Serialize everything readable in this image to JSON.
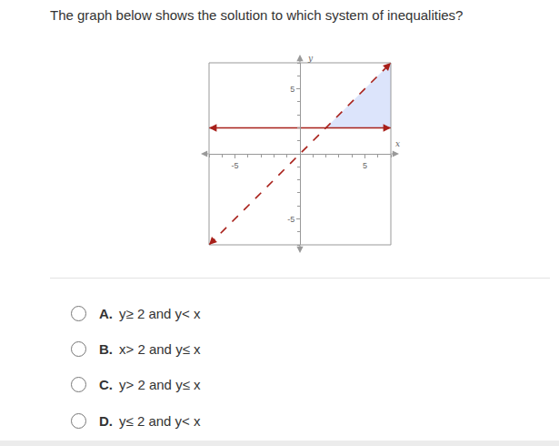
{
  "question": "The graph below shows the solution to which system of inequalities?",
  "chart_data": {
    "type": "inequality_graph",
    "xlabel": "x",
    "ylabel": "y",
    "xlim": [
      -7,
      7
    ],
    "ylim": [
      -7,
      7
    ],
    "xticks": [
      -5,
      5
    ],
    "yticks": [
      -5,
      5
    ],
    "grid": false,
    "boundaries": [
      {
        "y": 2,
        "line_style": "solid",
        "color": "#a8201a"
      },
      {
        "slope": 1,
        "intercept": 0,
        "line_style": "dashed",
        "color": "#a8201a"
      }
    ],
    "shaded": {
      "color": "#dce4fb"
    }
  },
  "options": [
    {
      "letter": "A.",
      "text": "y≥ 2 and y< x"
    },
    {
      "letter": "B.",
      "text": "x> 2 and y≤ x"
    },
    {
      "letter": "C.",
      "text": "y> 2 and y≤ x"
    },
    {
      "letter": "D.",
      "text": "y≤ 2 and y< x"
    }
  ]
}
